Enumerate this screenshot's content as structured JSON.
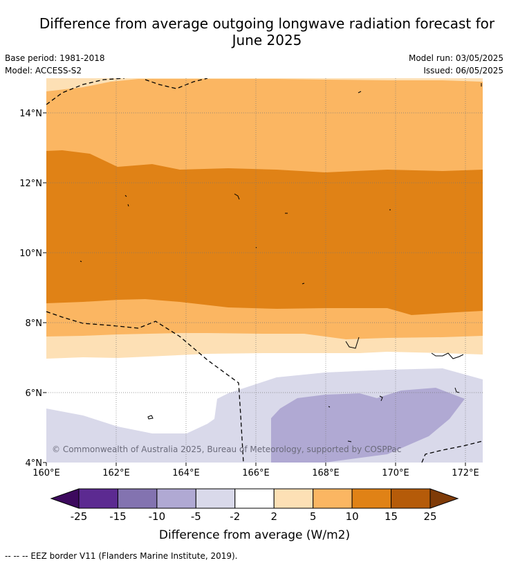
{
  "title_line1": "Difference from average outgoing longwave radiation forecast for",
  "title_line2": "June 2025",
  "base_period": "Base period: 1981-2018",
  "model": "Model: ACCESS-S2",
  "model_run": "Model run: 03/05/2025",
  "issued": "Issued: 06/05/2025",
  "copyright": "© Commonwealth of Australia 2025, Bureau of Meteorology, supported by COSPPac",
  "eez_note": "--  --  -- EEZ border V11 (Flanders Marine Institute, 2019).",
  "map": {
    "lon_ticks": [
      "160°E",
      "162°E",
      "164°E",
      "166°E",
      "168°E",
      "170°E",
      "172°E"
    ],
    "lat_ticks": [
      "14°N",
      "12°N",
      "10°N",
      "8°N",
      "6°N",
      "4°N"
    ]
  },
  "colorbar": {
    "title": "Difference from average (W/m2)",
    "labels": [
      "-25",
      "-15",
      "-10",
      "-5",
      "-2",
      "2",
      "5",
      "10",
      "15",
      "25"
    ],
    "colors": [
      "#3d0a5e",
      "#5c2a91",
      "#8373b0",
      "#b0a9d3",
      "#d9d9ea",
      "#ffffff",
      "#fde0b5",
      "#fbb662",
      "#e08216",
      "#b55b09",
      "#7f3b08"
    ]
  }
}
